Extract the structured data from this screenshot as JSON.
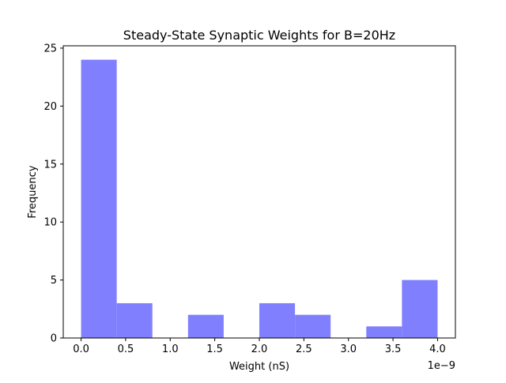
{
  "chart_data": {
    "type": "histogram",
    "title": "Steady-State Synaptic Weights for B=20Hz",
    "xlabel": "Weight (nS)",
    "ylabel": "Frequency",
    "x_offset_text": "1e−9",
    "xlim": [
      -0.2,
      4.2
    ],
    "ylim": [
      0,
      25.2
    ],
    "x_ticks": [
      0,
      0.5,
      1.0,
      1.5,
      2.0,
      2.5,
      3.0,
      3.5,
      4.0
    ],
    "x_tick_labels": [
      "0.0",
      "0.5",
      "1.0",
      "1.5",
      "2.0",
      "2.5",
      "3.0",
      "3.5",
      "4.0"
    ],
    "y_ticks": [
      0,
      5,
      10,
      15,
      20,
      25
    ],
    "y_tick_labels": [
      "0",
      "5",
      "10",
      "15",
      "20",
      "25"
    ],
    "bin_edges": [
      0.0,
      0.4,
      0.8,
      1.2,
      1.6,
      2.0,
      2.4,
      2.8,
      3.2,
      3.6,
      4.0
    ],
    "counts": [
      24,
      3,
      0,
      2,
      0,
      3,
      2,
      0,
      1,
      5
    ],
    "bar_color": "#8080ff",
    "grid": false,
    "legend": "none"
  }
}
